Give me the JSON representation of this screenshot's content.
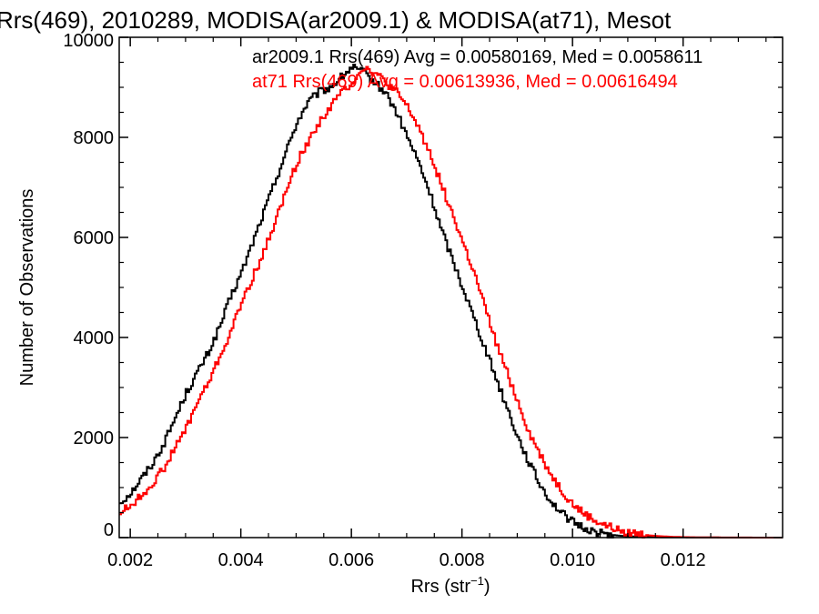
{
  "chart_data": {
    "type": "line",
    "title": "Rrs(469), 2010289, MODISA(ar2009.1) & MODISA(at71), Mesot",
    "xlabel_main": "Rrs (str",
    "xlabel_sup": "−1",
    "xlabel_close": ")",
    "ylabel": "Number of Observations",
    "xlim": [
      0.0018,
      0.0138
    ],
    "ylim": [
      0,
      10000
    ],
    "xticks": [
      0.002,
      0.004,
      0.006,
      0.008,
      0.01,
      0.012
    ],
    "xtick_labels": [
      "0.002",
      "0.004",
      "0.006",
      "0.008",
      "0.010",
      "0.012"
    ],
    "yticks": [
      0,
      2000,
      4000,
      6000,
      8000,
      10000
    ],
    "ytick_labels": [
      "0",
      "2000",
      "4000",
      "6000",
      "8000",
      "10000"
    ],
    "series": [
      {
        "name": "ar2009.1",
        "color": "#000000",
        "legend_text": "ar2009.1 Rrs(469) Avg = 0.00580169, Med = 0.0058611",
        "x": [
          0.0018,
          0.002,
          0.0022,
          0.0024,
          0.0026,
          0.0028,
          0.003,
          0.0032,
          0.0034,
          0.0036,
          0.0038,
          0.004,
          0.0042,
          0.0044,
          0.0046,
          0.0048,
          0.005,
          0.0052,
          0.0054,
          0.0056,
          0.0058,
          0.006,
          0.0062,
          0.0064,
          0.0066,
          0.0068,
          0.007,
          0.0072,
          0.0074,
          0.0076,
          0.0078,
          0.008,
          0.0082,
          0.0084,
          0.0086,
          0.0088,
          0.009,
          0.0092,
          0.0094,
          0.0096,
          0.0098,
          0.01,
          0.0102,
          0.0104,
          0.0106,
          0.0108,
          0.011,
          0.0112,
          0.0114,
          0.0116,
          0.0118,
          0.012,
          0.0122,
          0.0124,
          0.0126,
          0.0128,
          0.013,
          0.0132,
          0.0134,
          0.0136,
          0.0138
        ],
        "y": [
          700,
          900,
          1200,
          1500,
          1900,
          2400,
          2900,
          3300,
          3700,
          4200,
          4800,
          5300,
          5900,
          6500,
          7100,
          7700,
          8300,
          8700,
          8900,
          9000,
          9200,
          9400,
          9300,
          9100,
          8900,
          8500,
          8000,
          7500,
          6900,
          6200,
          5600,
          5000,
          4400,
          3800,
          3200,
          2600,
          2000,
          1500,
          1050,
          720,
          480,
          300,
          190,
          110,
          70,
          40,
          25,
          15,
          10,
          6,
          4,
          3,
          2,
          1,
          1,
          0,
          0,
          0,
          0,
          0,
          0
        ]
      },
      {
        "name": "at71",
        "color": "#ff0000",
        "legend_text": "at71 Rrs(469) Avg = 0.00613936, Med = 0.00616494",
        "x": [
          0.0018,
          0.002,
          0.0022,
          0.0024,
          0.0026,
          0.0028,
          0.003,
          0.0032,
          0.0034,
          0.0036,
          0.0038,
          0.004,
          0.0042,
          0.0044,
          0.0046,
          0.0048,
          0.005,
          0.0052,
          0.0054,
          0.0056,
          0.0058,
          0.006,
          0.0062,
          0.0064,
          0.0066,
          0.0068,
          0.007,
          0.0072,
          0.0074,
          0.0076,
          0.0078,
          0.008,
          0.0082,
          0.0084,
          0.0086,
          0.0088,
          0.009,
          0.0092,
          0.0094,
          0.0096,
          0.0098,
          0.01,
          0.0102,
          0.0104,
          0.0106,
          0.0108,
          0.011,
          0.0112,
          0.0114,
          0.0116,
          0.0118,
          0.012,
          0.0122,
          0.0124,
          0.0126,
          0.0128,
          0.013,
          0.0132,
          0.0134,
          0.0136,
          0.0138
        ],
        "y": [
          500,
          650,
          850,
          1100,
          1400,
          1800,
          2200,
          2700,
          3100,
          3600,
          4100,
          4700,
          5200,
          5700,
          6300,
          6900,
          7500,
          7900,
          8300,
          8600,
          8900,
          9100,
          9400,
          9300,
          9100,
          8900,
          8600,
          8200,
          7700,
          7100,
          6500,
          5900,
          5300,
          4600,
          3900,
          3300,
          2700,
          2100,
          1650,
          1250,
          920,
          650,
          470,
          330,
          230,
          150,
          100,
          65,
          40,
          25,
          15,
          10,
          6,
          4,
          3,
          2,
          1,
          1,
          0,
          0,
          0
        ]
      }
    ],
    "grid": false,
    "legend_position": "top-right"
  }
}
